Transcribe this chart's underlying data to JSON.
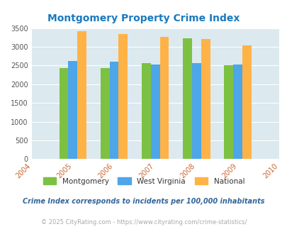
{
  "title": "Montgomery Property Crime Index",
  "title_color": "#1a7abf",
  "years": [
    2004,
    2005,
    2006,
    2007,
    2008,
    2009,
    2010
  ],
  "data": {
    "Montgomery": [
      2430,
      2430,
      2560,
      3230,
      2500
    ],
    "West Virginia": [
      2630,
      2610,
      2530,
      2570,
      2530
    ],
    "National": [
      3410,
      3340,
      3260,
      3210,
      3030
    ]
  },
  "bar_years": [
    2005,
    2006,
    2007,
    2008,
    2009
  ],
  "colors": {
    "Montgomery": "#7dc142",
    "West Virginia": "#4da6e8",
    "National": "#ffb347"
  },
  "ylim": [
    0,
    3500
  ],
  "yticks": [
    0,
    500,
    1000,
    1500,
    2000,
    2500,
    3000,
    3500
  ],
  "xlim": [
    2004,
    2010
  ],
  "bar_width": 0.22,
  "background_color": "#dce9ef",
  "legend_labels": [
    "Montgomery",
    "West Virginia",
    "National"
  ],
  "footnote1": "Crime Index corresponds to incidents per 100,000 inhabitants",
  "footnote2": "© 2025 CityRating.com - https://www.cityrating.com/crime-statistics/",
  "footnote1_color": "#336699",
  "footnote2_color": "#aaaaaa"
}
